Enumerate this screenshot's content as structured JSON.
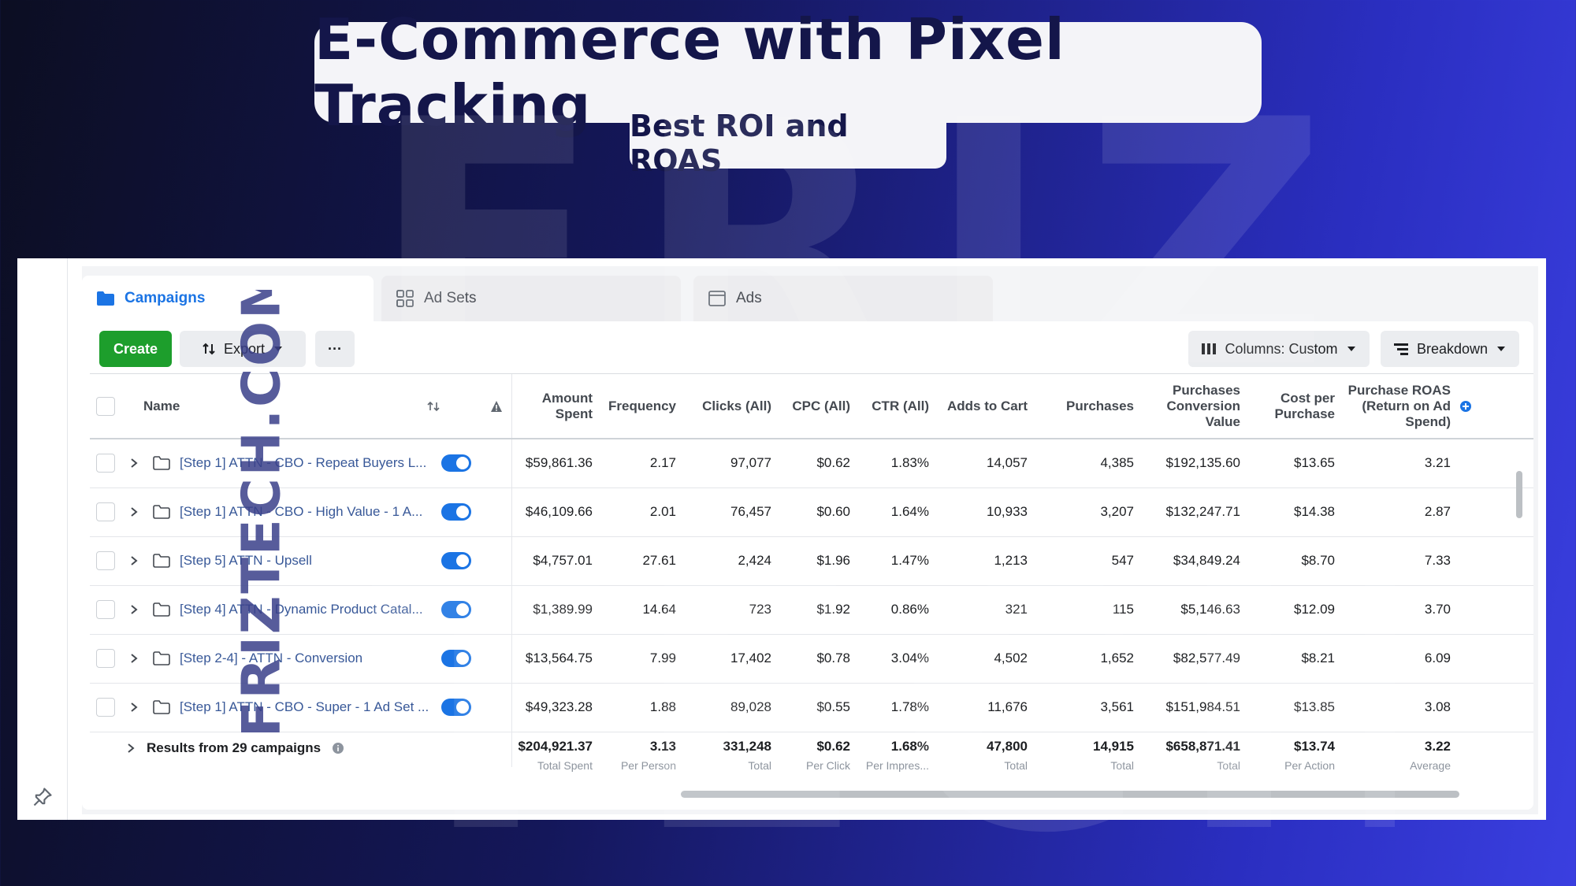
{
  "banner": {
    "title": "E-Commerce with Pixel Tracking",
    "subtitle": "Best ROI and ROAS"
  },
  "watermark": {
    "side_text": "FRIZTECH.COM",
    "background_text": "FRIZ TECH"
  },
  "tabs": [
    {
      "label": "Campaigns",
      "icon": "folder-icon",
      "active": true
    },
    {
      "label": "Ad Sets",
      "icon": "grid-icon",
      "active": false
    },
    {
      "label": "Ads",
      "icon": "window-icon",
      "active": false
    }
  ],
  "toolbar": {
    "create_label": "Create",
    "export_label": "Export",
    "more_label": "···",
    "columns_label": "Columns: Custom",
    "breakdown_label": "Breakdown"
  },
  "columns": {
    "name": "Name",
    "amount_spent": "Amount Spent",
    "frequency": "Frequency",
    "clicks": "Clicks (All)",
    "cpc": "CPC (All)",
    "ctr": "CTR (All)",
    "adds_to_cart": "Adds to Cart",
    "purchases": "Purchases",
    "conv_value": "Purchases Conversion Value",
    "cost_per_purchase": "Cost per Purchase",
    "roas": "Purchase ROAS (Return on Ad Spend)"
  },
  "rows": [
    {
      "name": "[Step 1] ATTN - CBO - Repeat Buyers L...",
      "amount_spent": "$59,861.36",
      "frequency": "2.17",
      "clicks": "97,077",
      "cpc": "$0.62",
      "ctr": "1.83%",
      "adds_to_cart": "14,057",
      "purchases": "4,385",
      "conv_value": "$192,135.60",
      "cost_per_purchase": "$13.65",
      "roas": "3.21"
    },
    {
      "name": "[Step 1] ATTN - CBO - High Value - 1 A...",
      "amount_spent": "$46,109.66",
      "frequency": "2.01",
      "clicks": "76,457",
      "cpc": "$0.60",
      "ctr": "1.64%",
      "adds_to_cart": "10,933",
      "purchases": "3,207",
      "conv_value": "$132,247.71",
      "cost_per_purchase": "$14.38",
      "roas": "2.87"
    },
    {
      "name": "[Step 5] ATTN - Upsell",
      "amount_spent": "$4,757.01",
      "frequency": "27.61",
      "clicks": "2,424",
      "cpc": "$1.96",
      "ctr": "1.47%",
      "adds_to_cart": "1,213",
      "purchases": "547",
      "conv_value": "$34,849.24",
      "cost_per_purchase": "$8.70",
      "roas": "7.33"
    },
    {
      "name": "[Step 4] ATTN - Dynamic Product Catal...",
      "amount_spent": "$1,389.99",
      "frequency": "14.64",
      "clicks": "723",
      "cpc": "$1.92",
      "ctr": "0.86%",
      "adds_to_cart": "321",
      "purchases": "115",
      "conv_value": "$5,146.63",
      "cost_per_purchase": "$12.09",
      "roas": "3.70"
    },
    {
      "name": "[Step 2-4] - ATTN - Conversion",
      "amount_spent": "$13,564.75",
      "frequency": "7.99",
      "clicks": "17,402",
      "cpc": "$0.78",
      "ctr": "3.04%",
      "adds_to_cart": "4,502",
      "purchases": "1,652",
      "conv_value": "$82,577.49",
      "cost_per_purchase": "$8.21",
      "roas": "6.09"
    },
    {
      "name": "[Step 1] ATTN - CBO - Super - 1 Ad Set ...",
      "amount_spent": "$49,323.28",
      "frequency": "1.88",
      "clicks": "89,028",
      "cpc": "$0.55",
      "ctr": "1.78%",
      "adds_to_cart": "11,676",
      "purchases": "3,561",
      "conv_value": "$151,984.51",
      "cost_per_purchase": "$13.85",
      "roas": "3.08"
    }
  ],
  "summary": {
    "label": "Results from 29 campaigns",
    "amount_spent": {
      "value": "$204,921.37",
      "sub": "Total Spent"
    },
    "frequency": {
      "value": "3.13",
      "sub": "Per Person"
    },
    "clicks": {
      "value": "331,248",
      "sub": "Total"
    },
    "cpc": {
      "value": "$0.62",
      "sub": "Per Click"
    },
    "ctr": {
      "value": "1.68%",
      "sub": "Per Impres..."
    },
    "adds_to_cart": {
      "value": "47,800",
      "sub": "Total"
    },
    "purchases": {
      "value": "14,915",
      "sub": "Total"
    },
    "conv_value": {
      "value": "$658,871.41",
      "sub": "Total"
    },
    "cost_per_purchase": {
      "value": "$13.74",
      "sub": "Per Action"
    },
    "roas": {
      "value": "3.22",
      "sub": "Average"
    }
  },
  "colors": {
    "accent": "#1b74e4",
    "create": "#1d9e2c",
    "title_text": "#14164a"
  }
}
